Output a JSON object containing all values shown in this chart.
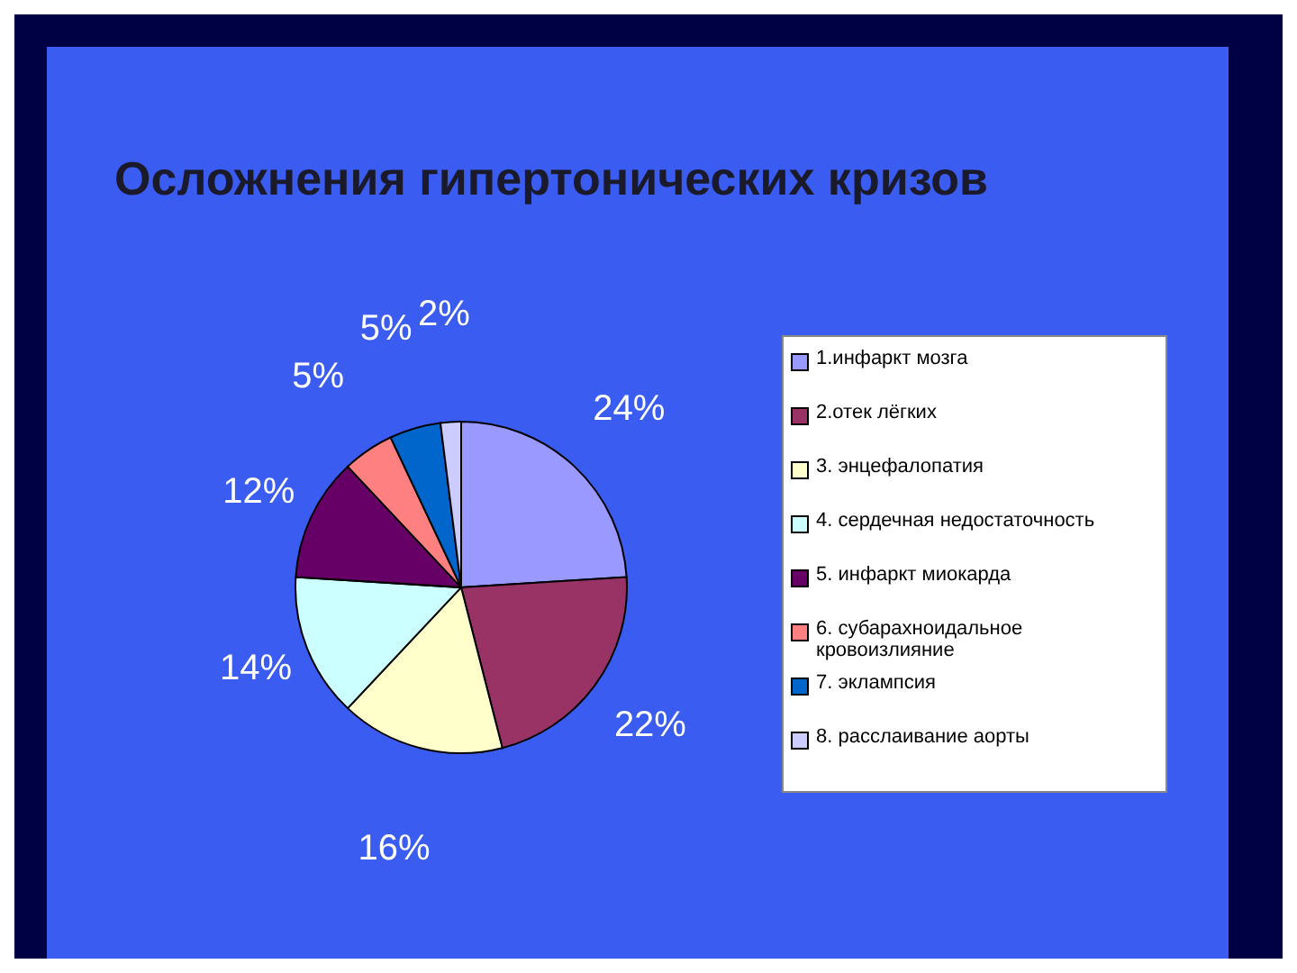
{
  "chart_data": {
    "type": "pie",
    "title": "Осложнения гипертонических кризов",
    "categories": [
      "1.инфаркт мозга",
      "2.отек лёгких",
      "3. энцефалопатия",
      "4. сердечная недостаточность",
      "5. инфаркт миокарда",
      "6. субарахноидальное кровоизлияние",
      "7. эклампсия",
      "8. расслаивание аорты"
    ],
    "values": [
      24,
      22,
      16,
      14,
      12,
      5,
      5,
      2
    ],
    "value_labels": [
      "24%",
      "22%",
      "16%",
      "14%",
      "12%",
      "5%",
      "5%",
      "2%"
    ],
    "colors": [
      "#9999ff",
      "#993366",
      "#ffffcc",
      "#ccffff",
      "#660066",
      "#ff8080",
      "#0066cc",
      "#ccccff"
    ],
    "legend": "right"
  }
}
